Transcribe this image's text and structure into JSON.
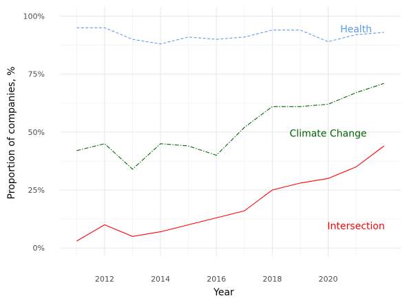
{
  "chart_data": {
    "type": "line",
    "title": "",
    "xlabel": "Year",
    "ylabel": "Proportion of companies, %",
    "x": [
      2011,
      2012,
      2013,
      2014,
      2015,
      2016,
      2017,
      2018,
      2019,
      2020,
      2021,
      2022
    ],
    "xlim": [
      2010.4,
      2022.6
    ],
    "ylim": [
      -3.5,
      104
    ],
    "xticks": [
      2012,
      2014,
      2016,
      2018,
      2020
    ],
    "xtick_labels": [
      "2012",
      "2014",
      "2016",
      "2018",
      "2020"
    ],
    "yticks": [
      0,
      25,
      50,
      75,
      100
    ],
    "ytick_labels": [
      "0%",
      "25%",
      "50%",
      "75%",
      "100%"
    ],
    "grid": true,
    "legend": "direct labels on lines",
    "series": [
      {
        "name": "Health",
        "color": "#5b9bea",
        "line_style": "dashed",
        "values": [
          95,
          95,
          90,
          88,
          91,
          90,
          91,
          94,
          94,
          89,
          92,
          93
        ],
        "label_at": [
          2021,
          94.5
        ]
      },
      {
        "name": "Climate Change",
        "color": "#006400",
        "line_style": "dashdot",
        "values": [
          42,
          45,
          34,
          45,
          44,
          40,
          52,
          61,
          61,
          62,
          67,
          71
        ],
        "label_at": [
          2020,
          49.5
        ]
      },
      {
        "name": "Intersection",
        "color": "#ff0000",
        "line_style": "solid",
        "values": [
          3,
          10,
          5,
          7,
          10,
          13,
          16,
          25,
          28,
          30,
          35,
          44
        ],
        "label_at": [
          2021,
          9.5
        ]
      }
    ]
  }
}
